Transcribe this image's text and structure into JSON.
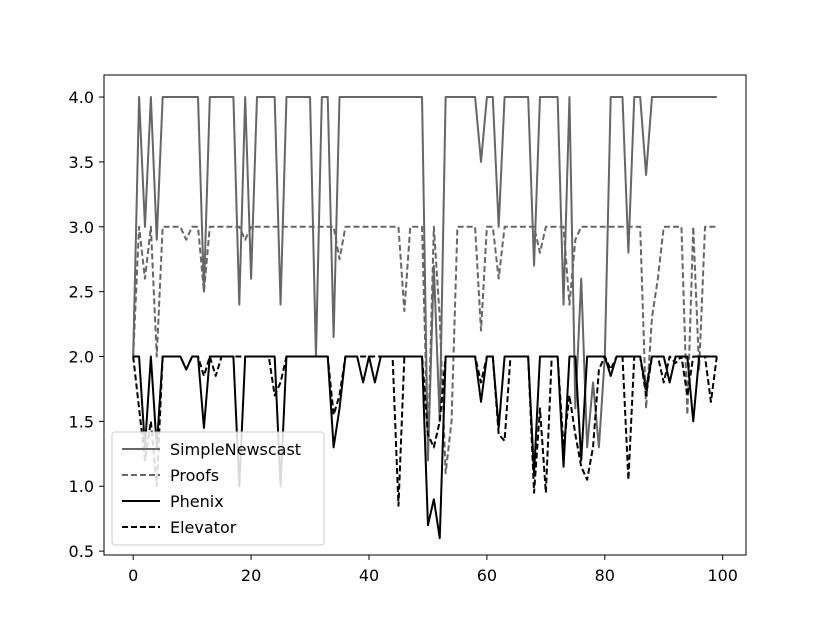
{
  "chart_data": {
    "type": "line",
    "title": "",
    "xlabel": "",
    "ylabel": "",
    "xlim": [
      -4.95,
      103.95
    ],
    "ylim": [
      0.47,
      4.17
    ],
    "x_ticks": [
      0,
      20,
      40,
      60,
      80,
      100
    ],
    "x_tick_labels": [
      "0",
      "20",
      "40",
      "60",
      "80",
      "100"
    ],
    "y_ticks": [
      0.5,
      1.0,
      1.5,
      2.0,
      2.5,
      3.0,
      3.5,
      4.0
    ],
    "y_tick_labels": [
      "0.5",
      "1.0",
      "1.5",
      "2.0",
      "2.5",
      "3.0",
      "3.5",
      "4.0"
    ],
    "grid": false,
    "legend_position": "lower-left",
    "x": [
      0,
      1,
      2,
      3,
      4,
      5,
      6,
      7,
      8,
      9,
      10,
      11,
      12,
      13,
      14,
      15,
      16,
      17,
      18,
      19,
      20,
      21,
      22,
      23,
      24,
      25,
      26,
      27,
      28,
      29,
      30,
      31,
      32,
      33,
      34,
      35,
      36,
      37,
      38,
      39,
      40,
      41,
      42,
      43,
      44,
      45,
      46,
      47,
      48,
      49,
      50,
      51,
      52,
      53,
      54,
      55,
      56,
      57,
      58,
      59,
      60,
      61,
      62,
      63,
      64,
      65,
      66,
      67,
      68,
      69,
      70,
      71,
      72,
      73,
      74,
      75,
      76,
      77,
      78,
      79,
      80,
      81,
      82,
      83,
      84,
      85,
      86,
      87,
      88,
      89,
      90,
      91,
      92,
      93,
      94,
      95,
      96,
      97,
      98,
      99
    ],
    "series": [
      {
        "name": "SimpleNewscast",
        "color": "#666666",
        "dash": "solid",
        "values": [
          2.0,
          4.0,
          3.0,
          4.0,
          2.9,
          4.0,
          4.0,
          4.0,
          4.0,
          4.0,
          4.0,
          4.0,
          2.5,
          4.0,
          4.0,
          4.0,
          4.0,
          4.0,
          2.4,
          4.0,
          2.6,
          4.0,
          4.0,
          4.0,
          4.0,
          2.4,
          4.0,
          4.0,
          4.0,
          4.0,
          4.0,
          2.0,
          4.0,
          4.0,
          2.15,
          4.0,
          4.0,
          4.0,
          4.0,
          4.0,
          4.0,
          4.0,
          4.0,
          4.0,
          4.0,
          4.0,
          4.0,
          4.0,
          4.0,
          4.0,
          1.2,
          2.7,
          1.5,
          4.0,
          4.0,
          4.0,
          4.0,
          4.0,
          4.0,
          3.5,
          4.0,
          4.0,
          3.0,
          4.0,
          4.0,
          4.0,
          4.0,
          4.0,
          2.7,
          4.0,
          4.0,
          4.0,
          4.0,
          2.4,
          4.0,
          1.6,
          2.6,
          1.3,
          1.8,
          1.3,
          2.0,
          4.0,
          4.0,
          4.0,
          2.8,
          4.0,
          4.0,
          3.4,
          4.0,
          4.0,
          4.0,
          4.0,
          4.0,
          4.0,
          4.0,
          4.0,
          4.0,
          4.0,
          4.0,
          4.0
        ]
      },
      {
        "name": "Proofs",
        "color": "#666666",
        "dash": "dashed",
        "values": [
          2.0,
          3.0,
          2.6,
          3.0,
          2.0,
          3.0,
          3.0,
          3.0,
          3.0,
          2.9,
          3.0,
          3.0,
          2.5,
          3.0,
          3.0,
          3.0,
          3.0,
          3.0,
          3.0,
          2.9,
          3.0,
          3.0,
          3.0,
          3.0,
          3.0,
          3.0,
          3.0,
          3.0,
          3.0,
          3.0,
          3.0,
          3.0,
          3.0,
          3.0,
          3.0,
          2.75,
          3.0,
          3.0,
          3.0,
          3.0,
          3.0,
          3.0,
          3.0,
          3.0,
          3.0,
          3.0,
          2.35,
          3.0,
          3.0,
          3.0,
          1.3,
          3.0,
          2.3,
          1.1,
          1.5,
          3.0,
          3.0,
          3.0,
          3.0,
          2.2,
          3.0,
          3.0,
          2.6,
          3.0,
          3.0,
          3.0,
          3.0,
          3.0,
          3.0,
          2.8,
          3.0,
          3.0,
          3.0,
          3.0,
          2.4,
          2.9,
          3.0,
          3.0,
          3.0,
          3.0,
          3.0,
          3.0,
          3.0,
          3.0,
          3.0,
          3.0,
          3.0,
          1.6,
          2.3,
          2.6,
          3.0,
          3.0,
          3.0,
          3.0,
          1.55,
          3.0,
          1.9,
          3.0,
          3.0,
          3.0
        ]
      },
      {
        "name": "Phenix",
        "color": "#000000",
        "dash": "solid",
        "values": [
          2.0,
          2.0,
          1.3,
          2.0,
          1.3,
          2.0,
          2.0,
          2.0,
          2.0,
          1.9,
          2.0,
          2.0,
          1.45,
          2.0,
          2.0,
          2.0,
          2.0,
          2.0,
          1.0,
          2.0,
          2.0,
          2.0,
          2.0,
          2.0,
          2.0,
          1.0,
          2.0,
          2.0,
          2.0,
          2.0,
          2.0,
          2.0,
          2.0,
          2.0,
          1.3,
          1.6,
          2.0,
          2.0,
          2.0,
          1.8,
          2.0,
          1.8,
          2.0,
          2.0,
          2.0,
          2.0,
          2.0,
          2.0,
          2.0,
          2.0,
          0.7,
          0.9,
          0.6,
          2.0,
          2.0,
          2.0,
          2.0,
          2.0,
          2.0,
          1.65,
          2.0,
          2.0,
          1.45,
          2.0,
          2.0,
          2.0,
          2.0,
          2.0,
          1.1,
          2.0,
          2.0,
          2.0,
          2.0,
          1.15,
          2.0,
          2.0,
          1.2,
          2.0,
          2.0,
          2.0,
          2.0,
          1.85,
          2.0,
          2.0,
          2.0,
          2.0,
          2.0,
          1.75,
          2.0,
          2.0,
          2.0,
          1.8,
          2.0,
          2.0,
          2.0,
          1.5,
          2.0,
          2.0,
          2.0,
          2.0
        ]
      },
      {
        "name": "Elevator",
        "color": "#000000",
        "dash": "dashed",
        "values": [
          2.0,
          1.6,
          1.2,
          1.5,
          1.0,
          2.0,
          2.0,
          2.0,
          2.0,
          1.9,
          2.0,
          2.0,
          1.85,
          2.0,
          1.85,
          2.0,
          2.0,
          2.0,
          2.0,
          2.0,
          2.0,
          2.0,
          2.0,
          2.0,
          1.7,
          1.8,
          2.0,
          2.0,
          2.0,
          2.0,
          2.0,
          2.0,
          2.0,
          2.0,
          1.55,
          1.7,
          2.0,
          2.0,
          2.0,
          2.0,
          2.0,
          2.0,
          2.0,
          2.0,
          2.0,
          0.85,
          2.0,
          2.0,
          2.0,
          2.0,
          1.4,
          1.3,
          1.5,
          2.0,
          2.0,
          2.0,
          2.0,
          2.0,
          2.0,
          1.8,
          2.0,
          2.0,
          1.4,
          1.35,
          2.0,
          2.0,
          2.0,
          2.0,
          0.95,
          1.6,
          0.95,
          2.0,
          2.0,
          1.3,
          1.7,
          1.4,
          1.15,
          1.05,
          1.3,
          1.9,
          2.0,
          1.9,
          2.0,
          2.0,
          1.05,
          2.0,
          2.0,
          1.7,
          2.0,
          2.0,
          1.8,
          2.0,
          1.95,
          2.0,
          1.7,
          2.0,
          2.0,
          2.0,
          1.65,
          2.0
        ]
      }
    ]
  }
}
